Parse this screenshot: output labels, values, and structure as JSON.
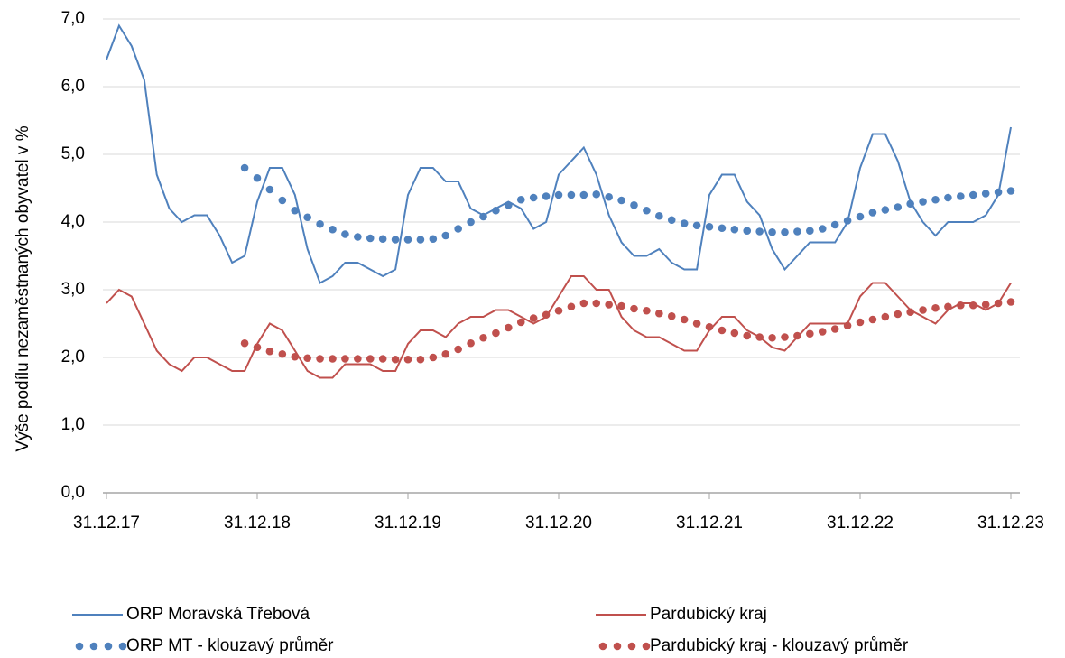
{
  "chart_data": {
    "type": "line",
    "ylabel": "Výše podílu nezaměstnaných obyvatel v %",
    "categories": [
      "31.12.17",
      null,
      null,
      null,
      null,
      null,
      null,
      null,
      null,
      null,
      null,
      null,
      "31.12.18",
      null,
      null,
      null,
      null,
      null,
      null,
      null,
      null,
      null,
      null,
      null,
      "31.12.19",
      null,
      null,
      null,
      null,
      null,
      null,
      null,
      null,
      null,
      null,
      null,
      "31.12.20",
      null,
      null,
      null,
      null,
      null,
      null,
      null,
      null,
      null,
      null,
      null,
      "31.12.21",
      null,
      null,
      null,
      null,
      null,
      null,
      null,
      null,
      null,
      null,
      null,
      "31.12.22",
      null,
      null,
      null,
      null,
      null,
      null,
      null,
      null,
      null,
      null,
      null,
      "31.12.23"
    ],
    "series": [
      {
        "name": "ORP Moravská Třebová",
        "color": "#4f81bd",
        "style": "solid",
        "values": [
          6.4,
          6.9,
          6.6,
          6.1,
          4.7,
          4.2,
          4.0,
          4.1,
          4.1,
          3.8,
          3.4,
          3.5,
          4.3,
          4.8,
          4.8,
          4.4,
          3.6,
          3.1,
          3.2,
          3.4,
          3.4,
          3.3,
          3.2,
          3.3,
          4.4,
          4.8,
          4.8,
          4.6,
          4.6,
          4.2,
          4.1,
          4.2,
          4.3,
          4.2,
          3.9,
          4.0,
          4.7,
          4.9,
          5.1,
          4.7,
          4.1,
          3.7,
          3.5,
          3.5,
          3.6,
          3.4,
          3.3,
          3.3,
          4.4,
          4.7,
          4.7,
          4.3,
          4.1,
          3.6,
          3.3,
          3.5,
          3.7,
          3.7,
          3.7,
          4.0,
          4.8,
          5.3,
          5.3,
          4.9,
          4.3,
          4.0,
          3.8,
          4.0,
          4.0,
          4.0,
          4.1,
          4.4,
          5.4
        ]
      },
      {
        "name": "Pardubický kraj",
        "color": "#c0504d",
        "style": "solid",
        "values": [
          2.8,
          3.0,
          2.9,
          2.5,
          2.1,
          1.9,
          1.8,
          2.0,
          2.0,
          1.9,
          1.8,
          1.8,
          2.2,
          2.5,
          2.4,
          2.1,
          1.8,
          1.7,
          1.7,
          1.9,
          1.9,
          1.9,
          1.8,
          1.8,
          2.2,
          2.4,
          2.4,
          2.3,
          2.5,
          2.6,
          2.6,
          2.7,
          2.7,
          2.6,
          2.5,
          2.6,
          2.9,
          3.2,
          3.2,
          3.0,
          3.0,
          2.6,
          2.4,
          2.3,
          2.3,
          2.2,
          2.1,
          2.1,
          2.4,
          2.6,
          2.6,
          2.4,
          2.3,
          2.15,
          2.1,
          2.3,
          2.5,
          2.5,
          2.5,
          2.5,
          2.9,
          3.1,
          3.1,
          2.9,
          2.7,
          2.6,
          2.5,
          2.7,
          2.8,
          2.8,
          2.7,
          2.8,
          3.1
        ]
      },
      {
        "name": "ORP MT - klouzavý průměr",
        "color": "#4f81bd",
        "style": "dotted",
        "values": [
          null,
          null,
          null,
          null,
          null,
          null,
          null,
          null,
          null,
          null,
          null,
          4.8,
          4.65,
          4.48,
          4.32,
          4.17,
          4.07,
          3.97,
          3.89,
          3.82,
          3.78,
          3.76,
          3.75,
          3.74,
          3.74,
          3.74,
          3.75,
          3.8,
          3.9,
          4.0,
          4.08,
          4.17,
          4.25,
          4.33,
          4.36,
          4.38,
          4.4,
          4.4,
          4.4,
          4.41,
          4.37,
          4.32,
          4.25,
          4.17,
          4.09,
          4.03,
          3.98,
          3.95,
          3.93,
          3.91,
          3.89,
          3.87,
          3.86,
          3.85,
          3.85,
          3.86,
          3.87,
          3.9,
          3.96,
          4.02,
          4.08,
          4.14,
          4.18,
          4.22,
          4.27,
          4.3,
          4.33,
          4.36,
          4.38,
          4.4,
          4.42,
          4.44,
          4.46
        ]
      },
      {
        "name": "Pardubický kraj - klouzavý průměr",
        "color": "#c0504d",
        "style": "dotted",
        "values": [
          null,
          null,
          null,
          null,
          null,
          null,
          null,
          null,
          null,
          null,
          null,
          2.21,
          2.15,
          2.09,
          2.05,
          2.01,
          1.99,
          1.98,
          1.98,
          1.98,
          1.98,
          1.98,
          1.98,
          1.97,
          1.97,
          1.97,
          2.0,
          2.05,
          2.12,
          2.21,
          2.29,
          2.36,
          2.44,
          2.52,
          2.58,
          2.63,
          2.69,
          2.75,
          2.8,
          2.8,
          2.78,
          2.76,
          2.72,
          2.69,
          2.65,
          2.61,
          2.56,
          2.5,
          2.45,
          2.4,
          2.36,
          2.32,
          2.3,
          2.29,
          2.3,
          2.32,
          2.35,
          2.38,
          2.42,
          2.47,
          2.52,
          2.56,
          2.6,
          2.64,
          2.67,
          2.7,
          2.73,
          2.75,
          2.77,
          2.77,
          2.78,
          2.8,
          2.82
        ]
      }
    ],
    "ylim": [
      0,
      7
    ],
    "yticks": [
      {
        "value": 0,
        "label": "0,0"
      },
      {
        "value": 1,
        "label": "1,0"
      },
      {
        "value": 2,
        "label": "2,0"
      },
      {
        "value": 3,
        "label": "3,0"
      },
      {
        "value": 4,
        "label": "4,0"
      },
      {
        "value": 5,
        "label": "5,0"
      },
      {
        "value": 6,
        "label": "6,0"
      },
      {
        "value": 7,
        "label": "7,0"
      }
    ],
    "grid": true
  }
}
